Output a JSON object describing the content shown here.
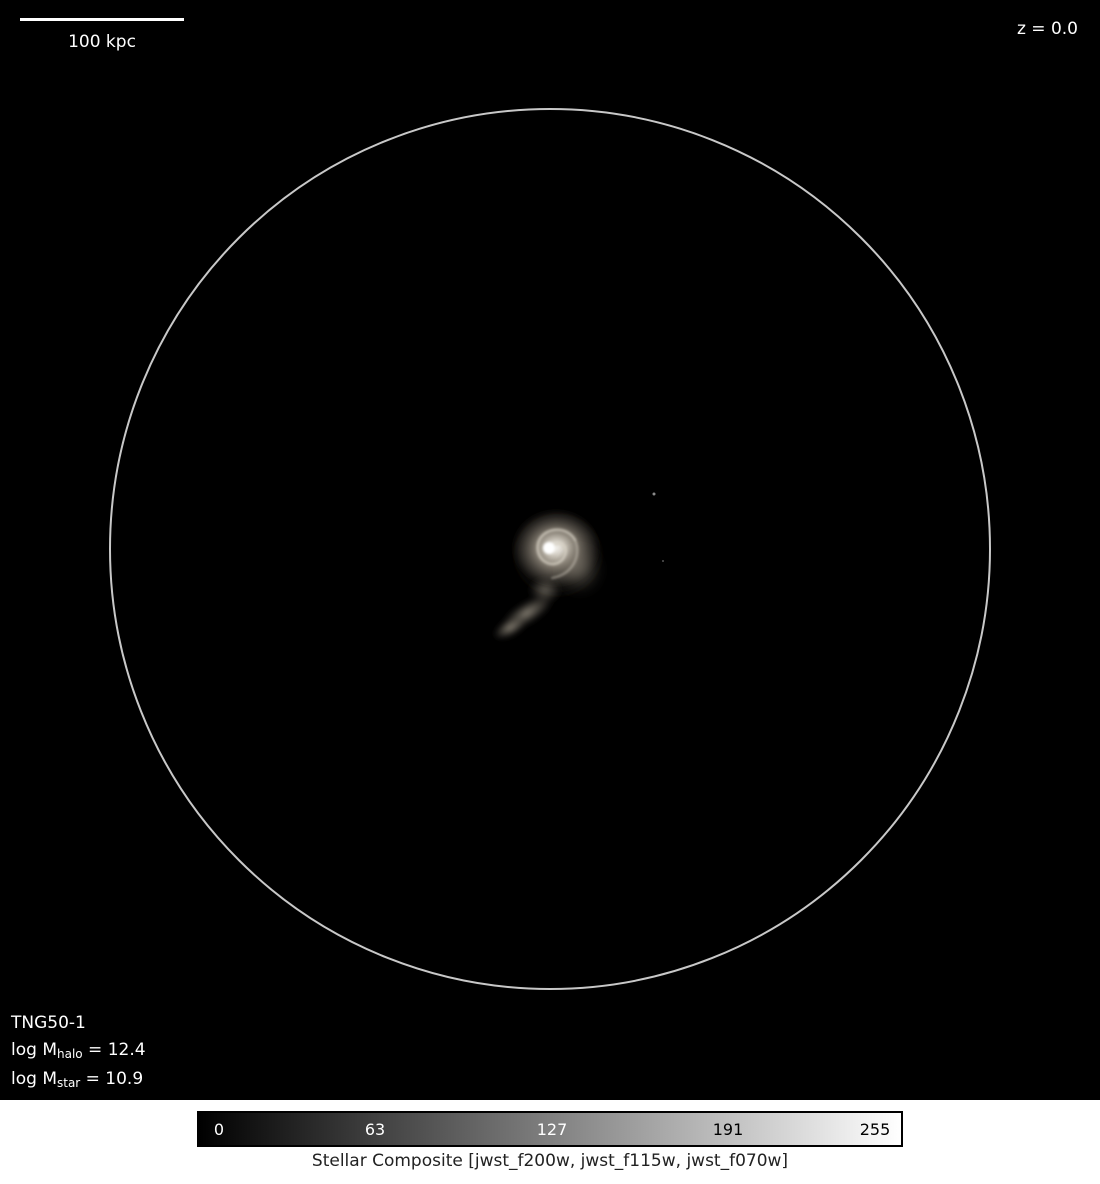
{
  "scalebar": {
    "label": "100 kpc"
  },
  "redshift": {
    "label": "z = 0.0"
  },
  "info": {
    "simulation": "TNG50-1",
    "halo_mass": {
      "prefix": "log M",
      "subscript": "halo",
      "value": " = 12.4"
    },
    "stellar_mass": {
      "prefix": "log M",
      "subscript": "star",
      "value": " = 10.9"
    }
  },
  "colorbar": {
    "ticks": [
      "0",
      "63",
      "127",
      "191",
      "255"
    ],
    "tick_values": [
      0,
      63,
      127,
      191,
      255
    ],
    "label": "Stellar Composite [jwst_f200w, jwst_f115w, jwst_f070w]",
    "range": [
      0,
      255
    ]
  },
  "colors": {
    "background": "#000000",
    "circle": "#c8c8c8",
    "text": "#ffffff"
  }
}
